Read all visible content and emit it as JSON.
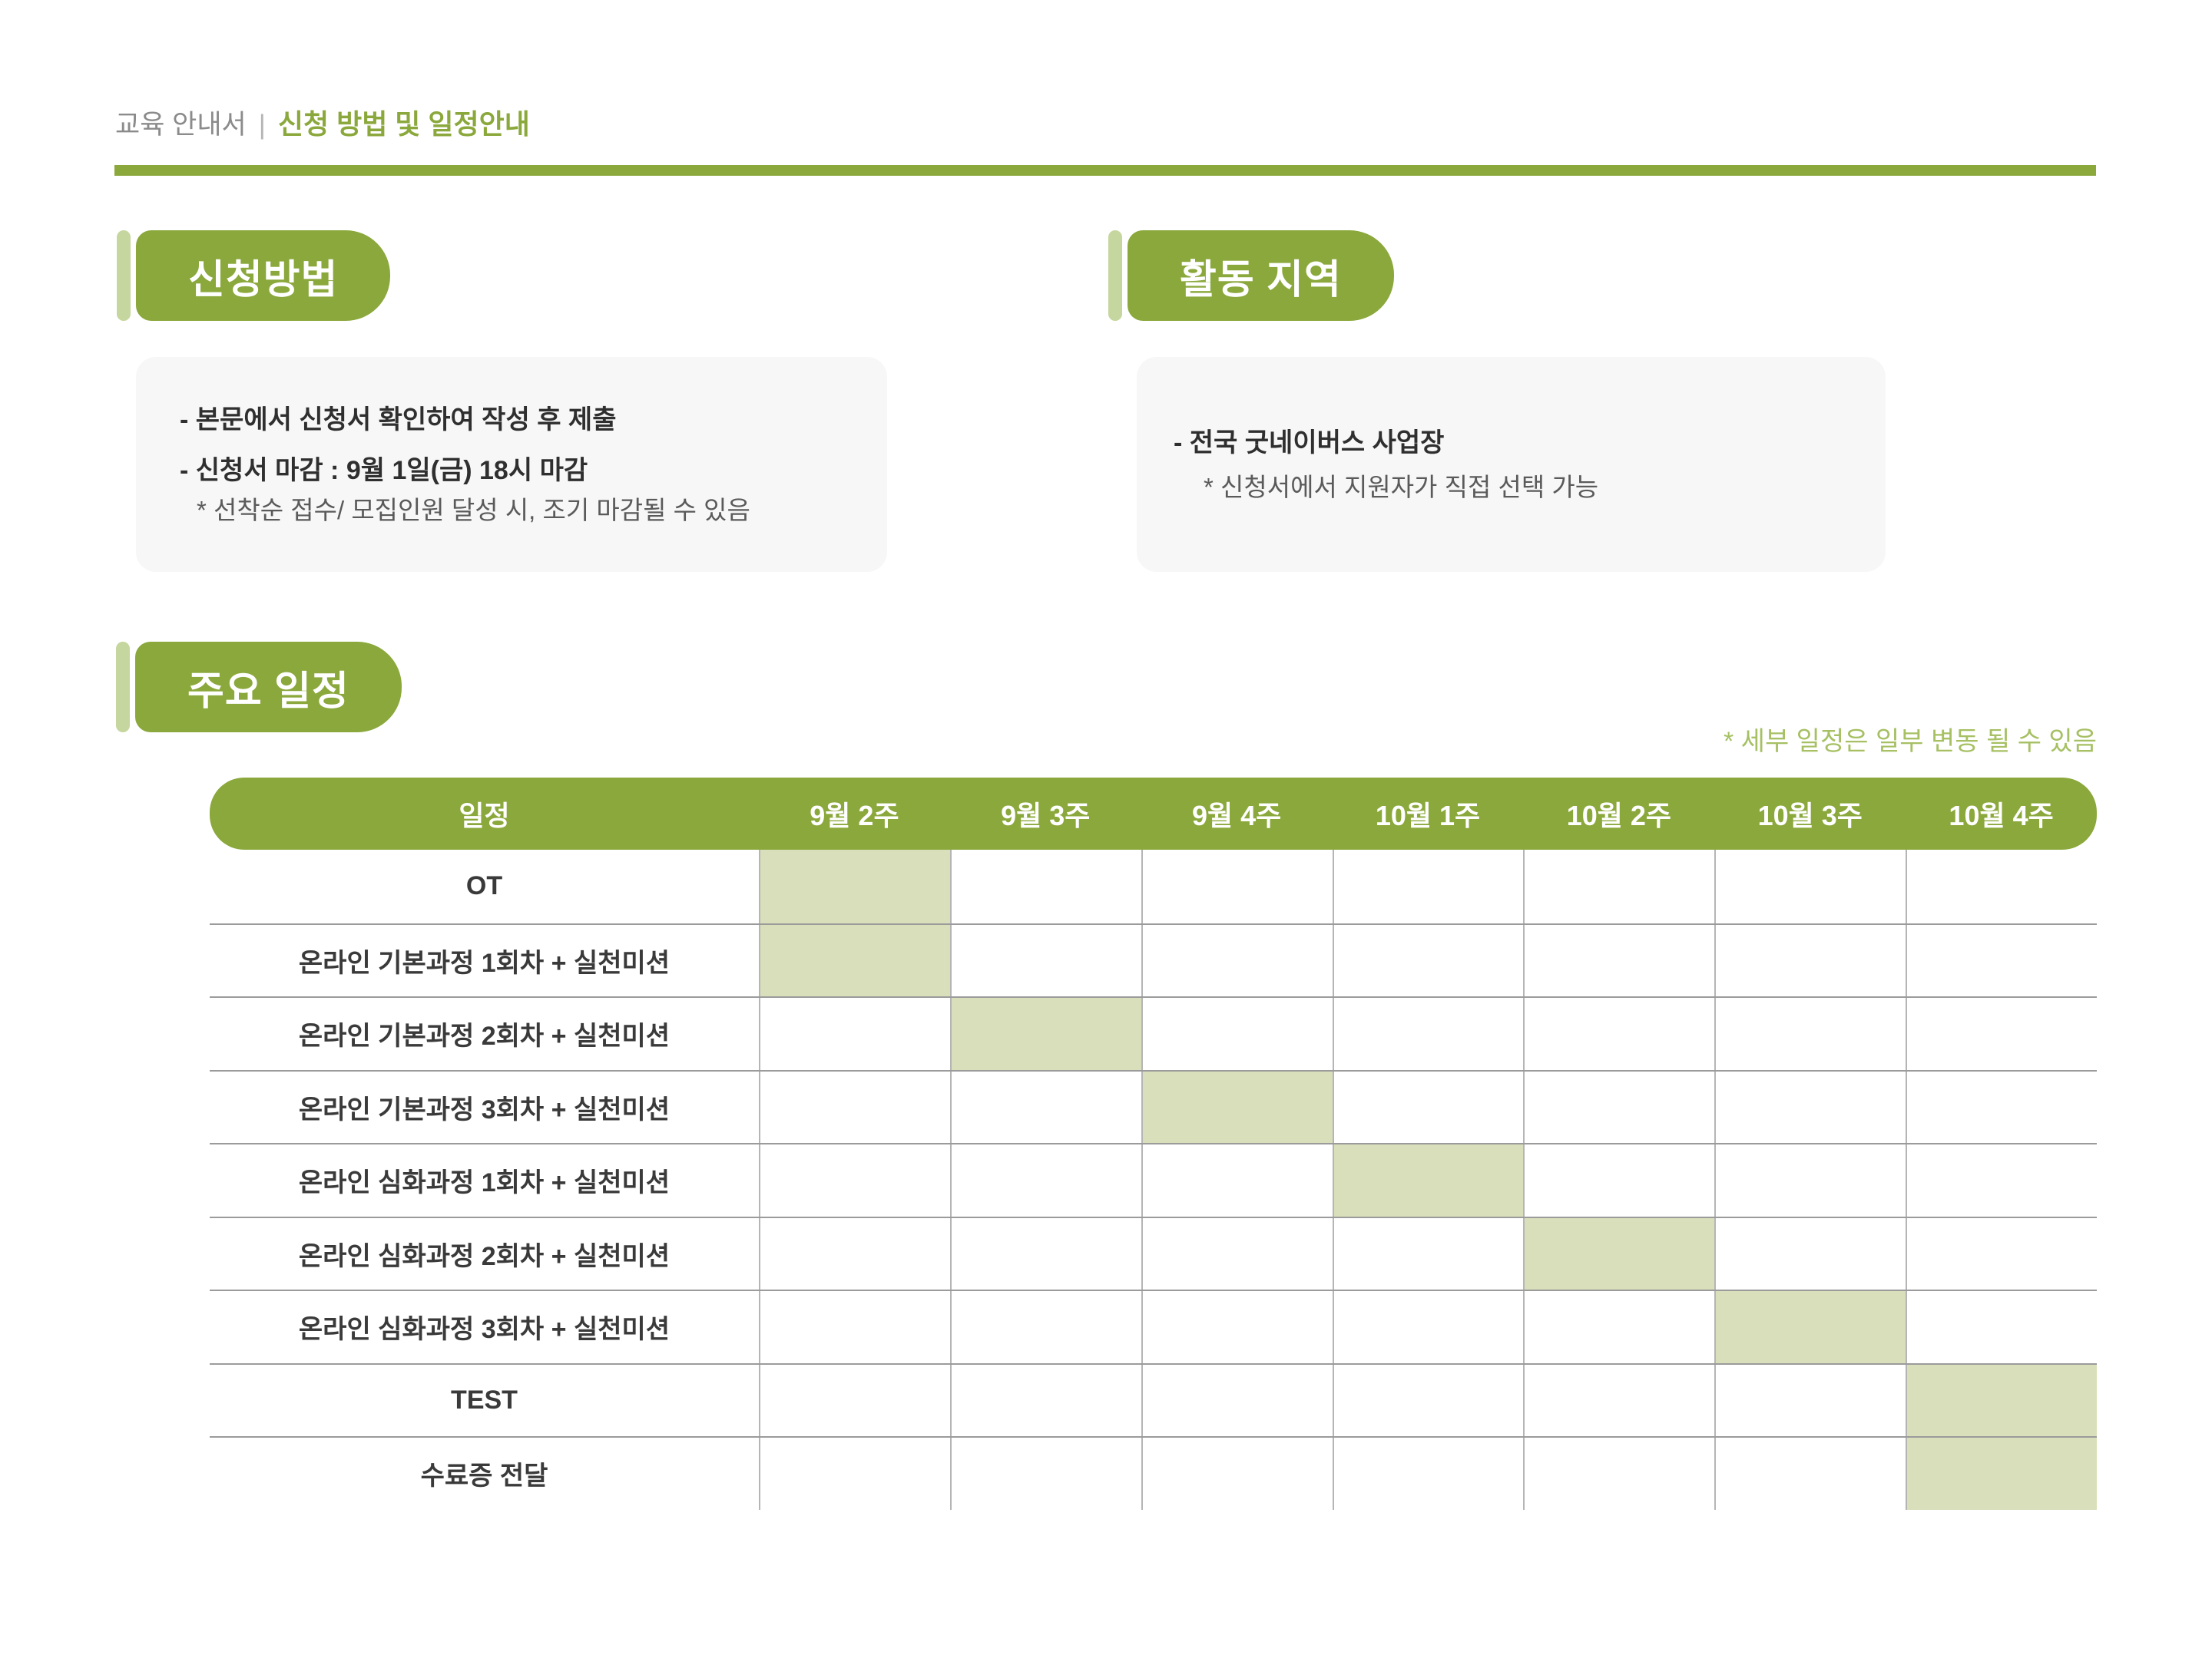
{
  "header": {
    "doc_title": "교육 안내서",
    "divider": "|",
    "page_title": "신청 방법 및 일정안내"
  },
  "apply": {
    "title": "신청방법",
    "line1": "- 본문에서 신청서 확인하여 작성 후 제출",
    "line2": "- 신청서 마감 : 9월 1일(금) 18시 마감",
    "note": "* 선착순 접수/ 모집인원 달성 시, 조기 마감될 수 있음"
  },
  "region": {
    "title": "활동 지역",
    "line1": "- 전국 굿네이버스 사업장",
    "note": "* 신청서에서 지원자가 직접 선택 가능"
  },
  "schedule": {
    "title": "주요 일정",
    "note": "* 세부 일정은 일부 변동 될 수 있음"
  },
  "schedule_table": {
    "columns": [
      "일정",
      "9월 2주",
      "9월 3주",
      "9월 4주",
      "10월 1주",
      "10월 2주",
      "10월 3주",
      "10월 4주"
    ],
    "rows": [
      {
        "label": "OT",
        "highlight": [
          "9월 2주"
        ]
      },
      {
        "label": "온라인 기본과정 1회차 + 실천미션",
        "highlight": [
          "9월 2주"
        ]
      },
      {
        "label": "온라인 기본과정 2회차 + 실천미션",
        "highlight": [
          "9월 3주"
        ]
      },
      {
        "label": "온라인 기본과정 3회차 + 실천미션",
        "highlight": [
          "9월 4주"
        ]
      },
      {
        "label": "온라인 심화과정 1회차 + 실천미션",
        "highlight": [
          "10월 1주"
        ]
      },
      {
        "label": "온라인 심화과정 2회차 + 실천미션",
        "highlight": [
          "10월 2주"
        ]
      },
      {
        "label": "온라인 심화과정 3회차 + 실천미션",
        "highlight": [
          "10월 3주"
        ]
      },
      {
        "label": "TEST",
        "highlight": [
          "10월 4주"
        ]
      },
      {
        "label": "수료증 전달",
        "highlight": [
          "10월 4주"
        ]
      }
    ]
  },
  "colors": {
    "green": "#8BA83C",
    "light_green": "#C5D69E",
    "cell_highlight": "#D9DFBA",
    "note_green": "#A6C063",
    "box_bg": "#F7F7F7"
  }
}
